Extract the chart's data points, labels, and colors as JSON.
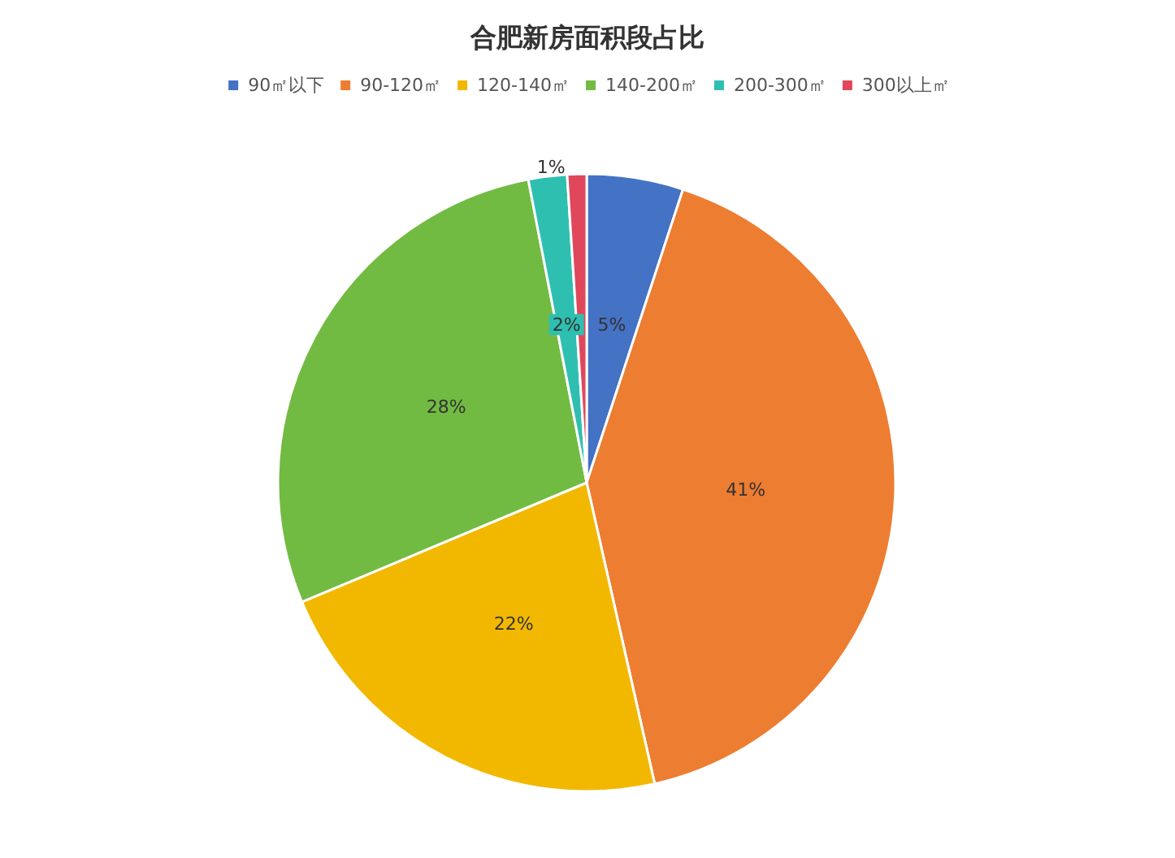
{
  "chart_data": {
    "type": "pie",
    "title": "合肥新房面积段占比",
    "categories": [
      "90㎡以下",
      "90-120㎡",
      "120-140㎡",
      "140-200㎡",
      "200-300㎡",
      "300以上㎡"
    ],
    "values": [
      5,
      41,
      22,
      28,
      2,
      1
    ],
    "colors": [
      "#4472c4",
      "#ed7d31",
      "#f2b800",
      "#72bb42",
      "#2fbfb0",
      "#e0475b"
    ],
    "value_labels": [
      "5%",
      "41%",
      "22%",
      "28%",
      "2%",
      "1%"
    ],
    "legend": "top"
  }
}
